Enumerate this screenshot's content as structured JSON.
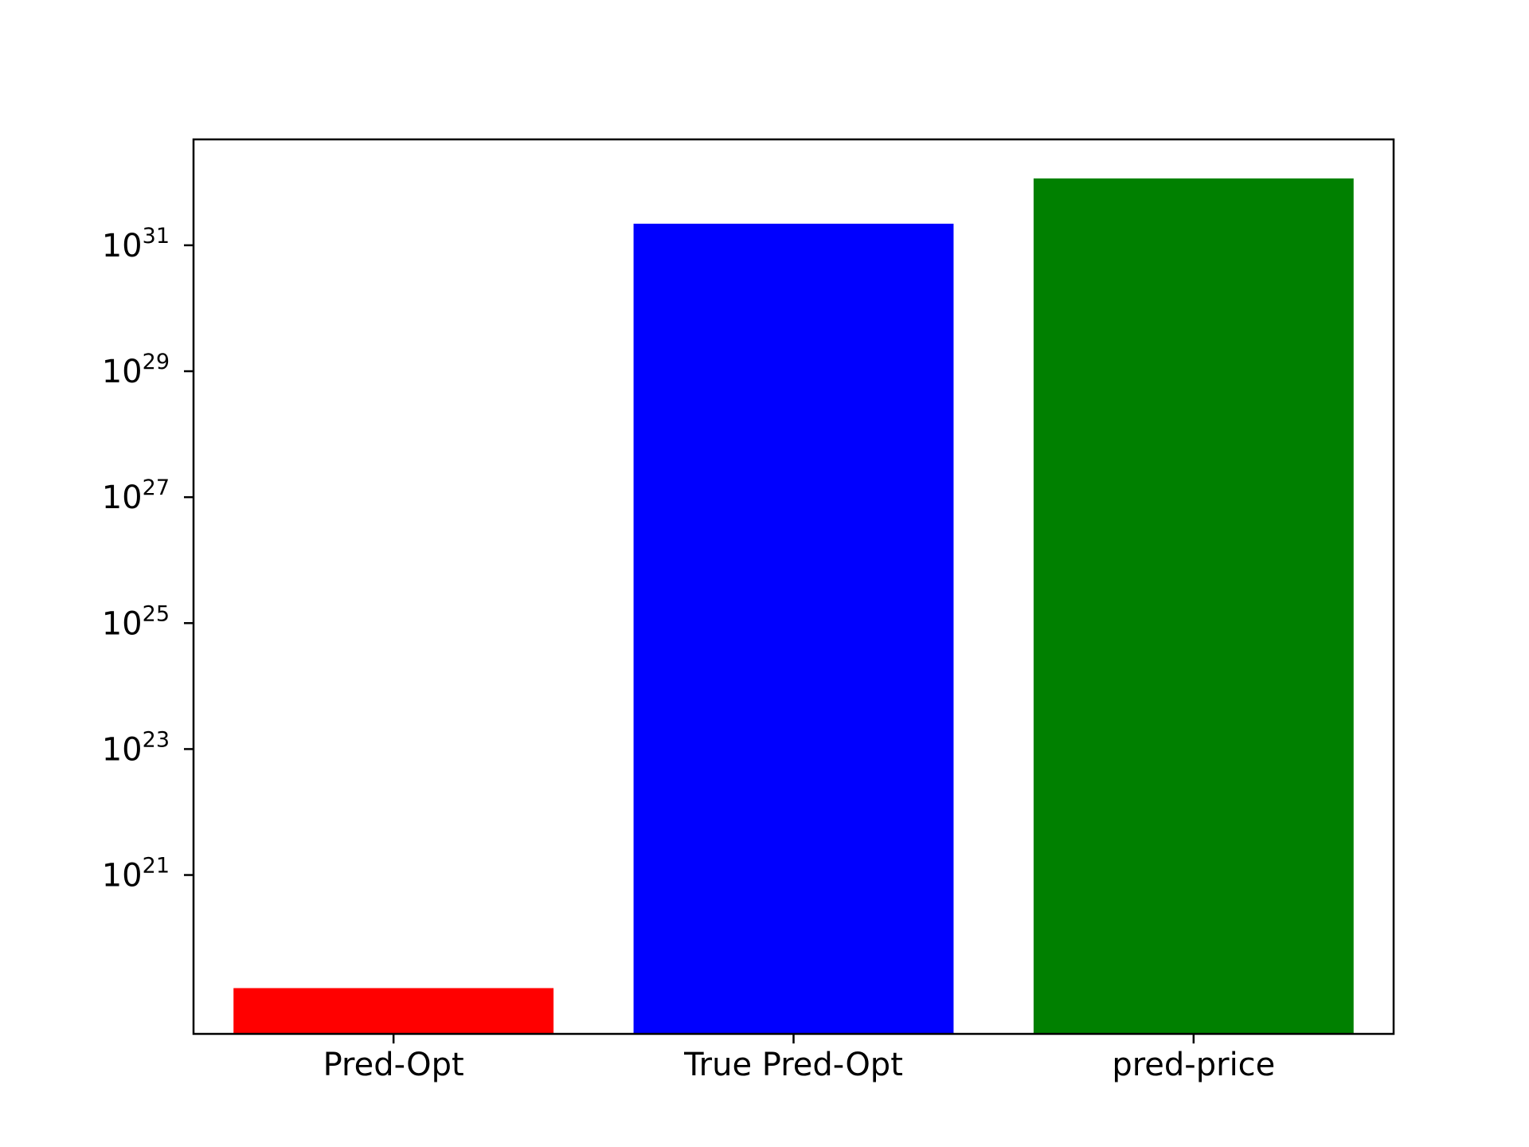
{
  "chart_data": {
    "type": "bar",
    "title": "",
    "xlabel": "",
    "ylabel": "",
    "yscale": "log",
    "grid": false,
    "categories": [
      "Pred-Opt",
      "True Pred-Opt",
      "pred-price"
    ],
    "values": [
      1.6e+19,
      2.2e+31,
      1.15e+32
    ],
    "colors": [
      "#ff0000",
      "#0000ff",
      "#008000"
    ],
    "ylim": [
      3e+18,
      4.8e+32
    ],
    "yticks": [
      {
        "exp": 21,
        "base": "10",
        "sup": "21"
      },
      {
        "exp": 23,
        "base": "10",
        "sup": "23"
      },
      {
        "exp": 25,
        "base": "10",
        "sup": "25"
      },
      {
        "exp": 27,
        "base": "10",
        "sup": "27"
      },
      {
        "exp": 29,
        "base": "10",
        "sup": "29"
      },
      {
        "exp": 31,
        "base": "10",
        "sup": "31"
      }
    ]
  }
}
